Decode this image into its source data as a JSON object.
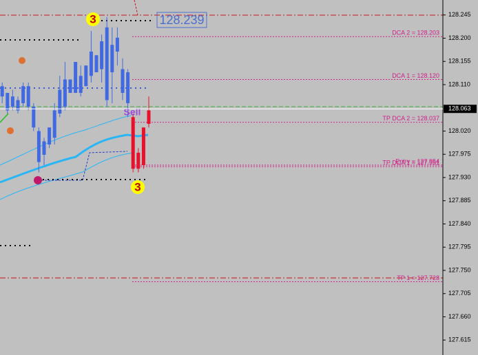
{
  "chart_data": {
    "type": "candlestick",
    "ylim": [
      127.586,
      128.274
    ],
    "yticks": [
      {
        "value": 128.245,
        "label": "128.245"
      },
      {
        "value": 128.2,
        "label": "128.200"
      },
      {
        "value": 128.155,
        "label": "128.155"
      },
      {
        "value": 128.11,
        "label": "128.110"
      },
      {
        "value": 128.02,
        "label": "128.020"
      },
      127.975,
      {
        "value": 127.93,
        "label": "127.930"
      },
      127.885,
      {
        "value": 127.84,
        "label": "127.840"
      },
      127.795,
      {
        "value": 127.75,
        "label": "127.750"
      },
      127.705,
      {
        "value": 127.66,
        "label": "127.660"
      },
      127.615
    ],
    "current_price": 128.063,
    "candles": [
      {
        "o": 128.087,
        "h": 128.114,
        "l": 128.074,
        "c": 128.107
      },
      {
        "o": 128.06,
        "h": 128.094,
        "l": 128.054,
        "c": 128.094
      },
      {
        "o": 128.067,
        "h": 128.1,
        "l": 128.06,
        "c": 128.087
      },
      {
        "o": 128.06,
        "h": 128.087,
        "l": 128.054,
        "c": 128.08
      },
      {
        "o": 128.074,
        "h": 128.114,
        "l": 128.067,
        "c": 128.107
      },
      {
        "o": 128.067,
        "h": 128.114,
        "l": 128.06,
        "c": 128.107
      },
      {
        "o": 128.027,
        "h": 128.074,
        "l": 128.02,
        "c": 128.067
      },
      {
        "o": 127.96,
        "h": 128.027,
        "l": 127.94,
        "c": 128.02
      },
      {
        "o": 127.974,
        "h": 128.007,
        "l": 127.954,
        "c": 128.0
      },
      {
        "o": 127.994,
        "h": 128.027,
        "l": 127.987,
        "c": 128.027
      },
      {
        "o": 128.007,
        "h": 128.074,
        "l": 127.994,
        "c": 128.06
      },
      {
        "o": 128.054,
        "h": 128.127,
        "l": 128.047,
        "c": 128.1
      },
      {
        "o": 128.067,
        "h": 128.154,
        "l": 128.06,
        "c": 128.12
      },
      {
        "o": 128.094,
        "h": 128.12,
        "l": 128.094,
        "c": 128.12
      },
      {
        "o": 128.094,
        "h": 128.154,
        "l": 128.094,
        "c": 128.154
      },
      {
        "o": 128.094,
        "h": 128.147,
        "l": 128.087,
        "c": 128.127
      },
      {
        "o": 128.107,
        "h": 128.147,
        "l": 128.107,
        "c": 128.147
      },
      {
        "o": 128.127,
        "h": 128.214,
        "l": 128.114,
        "c": 128.174
      },
      {
        "o": 128.134,
        "h": 128.167,
        "l": 128.134,
        "c": 128.167
      },
      {
        "o": 128.14,
        "h": 128.207,
        "l": 128.114,
        "c": 128.194
      },
      {
        "o": 128.08,
        "h": 128.241,
        "l": 128.067,
        "c": 128.221
      },
      {
        "o": 128.134,
        "h": 128.221,
        "l": 128.074,
        "c": 128.187
      },
      {
        "o": 128.174,
        "h": 128.221,
        "l": 128.147,
        "c": 128.201
      },
      {
        "o": 128.094,
        "h": 128.161,
        "l": 128.08,
        "c": 128.14
      },
      {
        "o": 128.134,
        "h": 128.14,
        "l": 128.047,
        "c": 128.074
      },
      {
        "o": 128.047,
        "h": 128.054,
        "l": 127.94,
        "c": 127.947
      },
      {
        "o": 127.978,
        "h": 127.987,
        "l": 127.94,
        "c": 127.947
      },
      {
        "o": 127.954,
        "h": 128.027,
        "l": 127.947,
        "c": 128.027
      },
      {
        "o": 128.034,
        "h": 128.087,
        "l": 128.027,
        "c": 128.06
      }
    ],
    "candle_colors": [
      "#4169e1",
      "#4169e1",
      "#4169e1",
      "#4169e1",
      "#4169e1",
      "#4169e1",
      "#4169e1",
      "#4169e1",
      "#4169e1",
      "#4169e1",
      "#4169e1",
      "#4169e1",
      "#4169e1",
      "#4169e1",
      "#4169e1",
      "#4169e1",
      "#4169e1",
      "#4169e1",
      "#4169e1",
      "#4169e1",
      "#4169e1",
      "#4169e1",
      "#4169e1",
      "#4169e1",
      "#4169e1",
      "#e8102a",
      "#e8102a",
      "#e8102a",
      "#e8102a"
    ],
    "levels": [
      {
        "label": "DCA 2 = 128.203",
        "value": 128.203,
        "color": "#d0208a"
      },
      {
        "label": "DCA 1 = 128.120",
        "value": 128.12,
        "color": "#d0208a"
      },
      {
        "label": "TP DCA 2 = 128.037",
        "value": 128.037,
        "color": "#d0208a"
      },
      {
        "label": "Entry = 127.954",
        "value": 127.954,
        "color": "#d0208a"
      },
      {
        "label": "TP DCA 1 = 127.951",
        "value": 127.951,
        "color": "#d0208a"
      },
      {
        "label": "TP 1 = 127.728",
        "value": 127.728,
        "color": "#d0208a"
      }
    ],
    "high_label": 128.239,
    "signal": "Sell",
    "wave_top": "3",
    "wave_bottom": "3"
  }
}
